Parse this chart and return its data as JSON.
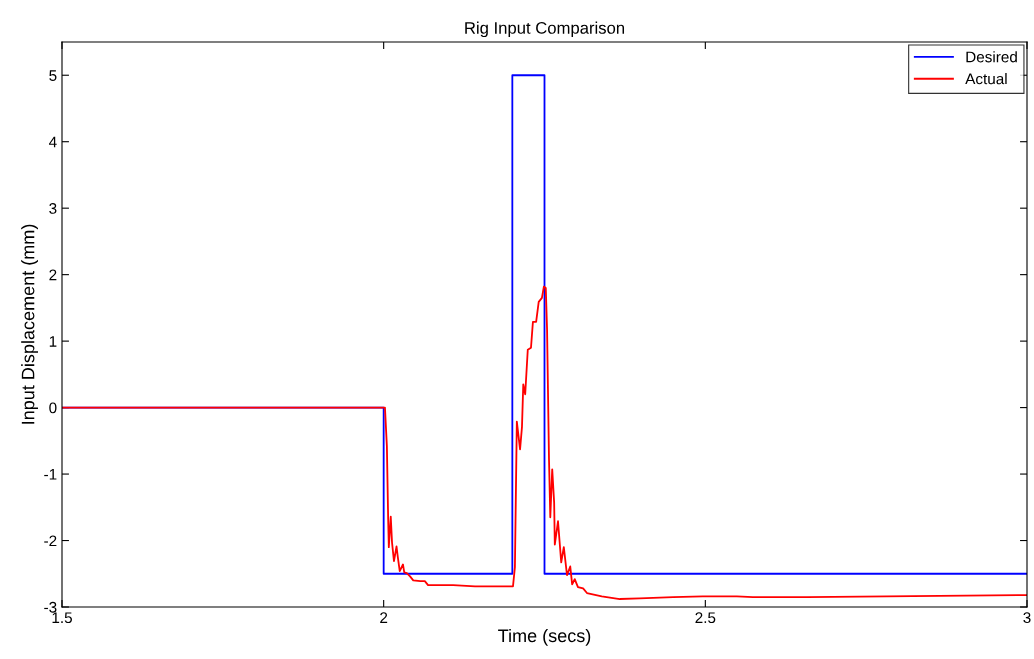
{
  "chart_data": {
    "type": "line",
    "title": "Rig Input Comparison",
    "xlabel": "Time (secs)",
    "ylabel": "Input Displacement (mm)",
    "xlim": [
      1.5,
      3
    ],
    "xticks": [
      1.5,
      2,
      2.5,
      3
    ],
    "ylim": [
      -3,
      5.5
    ],
    "yticks": [
      -3,
      -2,
      -1,
      0,
      1,
      2,
      3,
      4,
      5
    ],
    "grid": false,
    "legend": "top right",
    "marker": "none",
    "line_style": "solid",
    "series": [
      {
        "name": "Desired",
        "color": "#0000ff",
        "x": [
          1.5,
          2,
          2,
          2.2,
          2.2,
          2.25,
          2.25,
          3
        ],
        "values": [
          0,
          0,
          -2.5,
          -2.5,
          5,
          5,
          -2.5,
          -2.5
        ]
      },
      {
        "name": "Actual",
        "color": "#ff0000",
        "x": [
          1.5,
          2.002,
          2.005,
          2.007,
          2.008,
          2.011,
          2.013,
          2.016,
          2.02,
          2.022,
          2.025,
          2.03,
          2.032,
          2.036,
          2.041,
          2.046,
          2.057,
          2.064,
          2.069,
          2.108,
          2.142,
          2.201,
          2.204,
          2.207,
          2.212,
          2.215,
          2.217,
          2.22,
          2.224,
          2.229,
          2.232,
          2.237,
          2.241,
          2.246,
          2.249,
          2.252,
          2.254,
          2.257,
          2.259,
          2.262,
          2.265,
          2.266,
          2.271,
          2.276,
          2.28,
          2.285,
          2.29,
          2.293,
          2.297,
          2.302,
          2.31,
          2.316,
          2.339,
          2.367,
          2.398,
          2.45,
          2.496,
          2.549,
          2.574,
          2.658,
          2.782,
          3.0
        ],
        "values": [
          0,
          0,
          -0.58,
          -1.68,
          -2.1,
          -1.64,
          -2.03,
          -2.31,
          -2.09,
          -2.25,
          -2.46,
          -2.36,
          -2.48,
          -2.49,
          -2.54,
          -2.6,
          -2.61,
          -2.61,
          -2.67,
          -2.67,
          -2.69,
          -2.69,
          -2.4,
          -0.21,
          -0.63,
          -0.29,
          0.35,
          0.2,
          0.87,
          0.9,
          1.29,
          1.29,
          1.59,
          1.65,
          1.82,
          1.8,
          1.17,
          -0.78,
          -1.65,
          -0.93,
          -1.43,
          -2.06,
          -1.71,
          -2.33,
          -2.1,
          -2.52,
          -2.39,
          -2.66,
          -2.58,
          -2.7,
          -2.72,
          -2.79,
          -2.84,
          -2.88,
          -2.87,
          -2.85,
          -2.84,
          -2.84,
          -2.85,
          -2.85,
          -2.84,
          -2.82
        ]
      }
    ]
  }
}
